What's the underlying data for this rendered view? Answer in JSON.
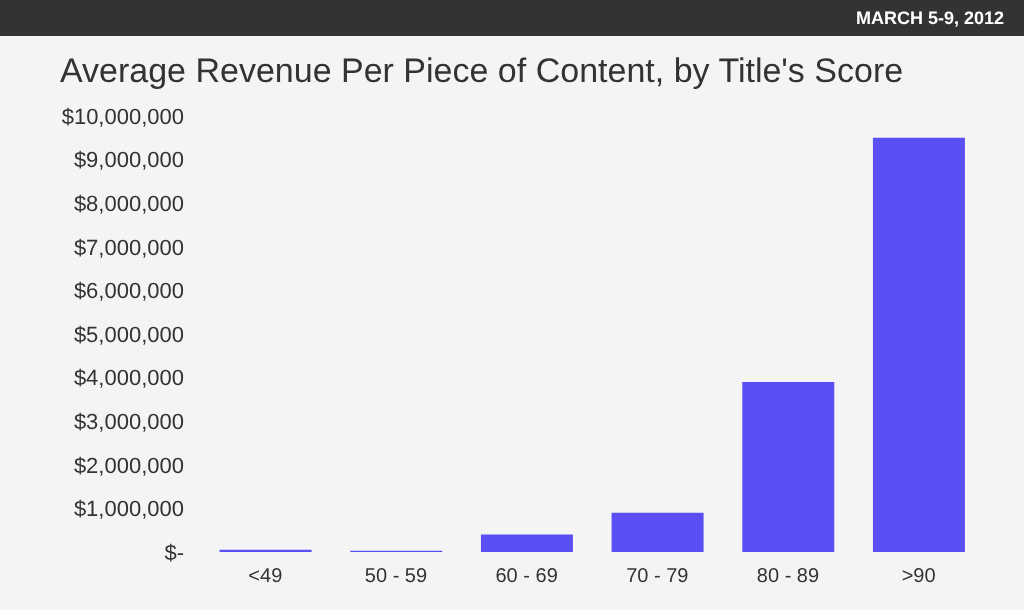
{
  "chart_data": {
    "type": "bar",
    "title": "Average Revenue Per Piece of Content, by Title's Score",
    "annotations": [
      "MARCH 5-9, 2012"
    ],
    "categories": [
      "<49",
      "50 - 59",
      "60 - 69",
      "70 - 79",
      "80 - 89",
      ">90"
    ],
    "values": [
      50000,
      30000,
      400000,
      900000,
      3900000,
      9500000
    ],
    "color": "#5a4ff2",
    "ylim": [
      0,
      10000000
    ],
    "yticks": [
      {
        "value": 0,
        "label": "$-"
      },
      {
        "value": 1000000,
        "label": "$1,000,000"
      },
      {
        "value": 2000000,
        "label": "$2,000,000"
      },
      {
        "value": 3000000,
        "label": "$3,000,000"
      },
      {
        "value": 4000000,
        "label": "$4,000,000"
      },
      {
        "value": 5000000,
        "label": "$5,000,000"
      },
      {
        "value": 6000000,
        "label": "$6,000,000"
      },
      {
        "value": 7000000,
        "label": "$7,000,000"
      },
      {
        "value": 8000000,
        "label": "$8,000,000"
      },
      {
        "value": 9000000,
        "label": "$9,000,000"
      },
      {
        "value": 10000000,
        "label": "$10,000,000"
      }
    ],
    "grid": false
  }
}
